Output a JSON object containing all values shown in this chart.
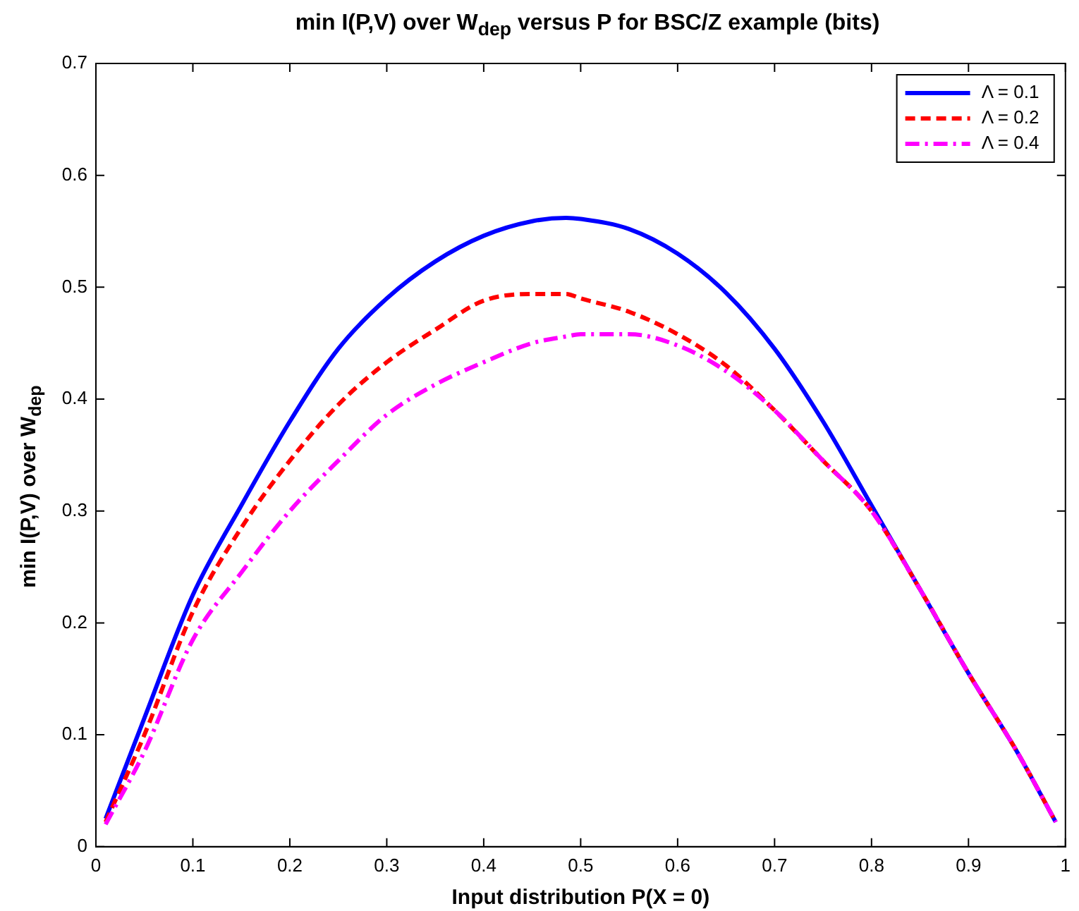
{
  "chart_data": {
    "type": "line",
    "title": "min I(P,V) over W$_{dep}$ versus P for BSC/Z example (bits)",
    "xlabel": "Input distribution P(X = 0)",
    "ylabel": "min I(P,V) over W$_{dep}$",
    "x": [
      0.01,
      0.05,
      0.1,
      0.15,
      0.2,
      0.25,
      0.3,
      0.35,
      0.4,
      0.45,
      0.485,
      0.5,
      0.55,
      0.6,
      0.65,
      0.7,
      0.75,
      0.8,
      0.85,
      0.9,
      0.95,
      0.99
    ],
    "series": [
      {
        "name": "Λ = 0.1",
        "color": "#0000ff",
        "line_style": "solid",
        "values": [
          0.025,
          0.115,
          0.225,
          0.305,
          0.38,
          0.445,
          0.49,
          0.523,
          0.546,
          0.559,
          0.562,
          0.561,
          0.552,
          0.53,
          0.495,
          0.445,
          0.38,
          0.305,
          0.23,
          0.155,
          0.085,
          0.022
        ]
      },
      {
        "name": "Λ = 0.2",
        "color": "#ff0000",
        "line_style": "dashed",
        "values": [
          0.022,
          0.1,
          0.21,
          0.285,
          0.345,
          0.395,
          0.433,
          0.462,
          0.488,
          0.494,
          0.494,
          0.49,
          0.478,
          0.458,
          0.43,
          0.39,
          0.345,
          0.3,
          0.23,
          0.155,
          0.085,
          0.022
        ]
      },
      {
        "name": "Λ = 0.4",
        "color": "#ff00ff",
        "line_style": "dashdot",
        "values": [
          0.02,
          0.085,
          0.185,
          0.245,
          0.3,
          0.345,
          0.386,
          0.413,
          0.433,
          0.45,
          0.456,
          0.458,
          0.458,
          0.448,
          0.425,
          0.39,
          0.345,
          0.3,
          0.23,
          0.155,
          0.085,
          0.022
        ]
      }
    ],
    "xlim": [
      0,
      1
    ],
    "xticks": [
      0,
      0.1,
      0.2,
      0.3,
      0.4,
      0.5,
      0.6,
      0.7,
      0.8,
      0.9,
      1
    ],
    "ylim": [
      0,
      0.7
    ],
    "yticks": [
      0,
      0.1,
      0.2,
      0.3,
      0.4,
      0.5,
      0.6,
      0.7
    ],
    "grid": false,
    "legend": "top right",
    "marker": "none"
  }
}
